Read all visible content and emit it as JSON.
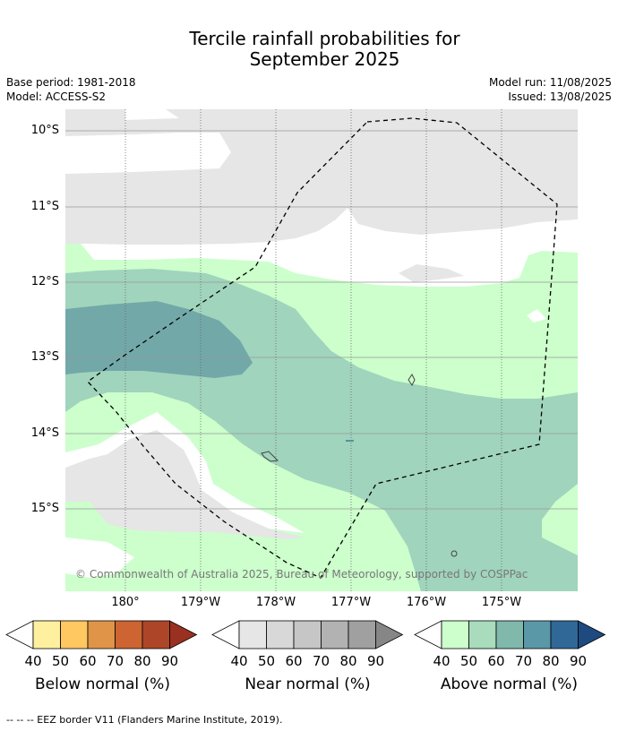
{
  "title": {
    "line1": "Tercile rainfall probabilities for",
    "line2": "September 2025"
  },
  "meta": {
    "base_period": "Base period: 1981-2018",
    "model": "Model: ACCESS-S2",
    "model_run": "Model run: 11/08/2025",
    "issued": "Issued: 13/08/2025"
  },
  "map": {
    "lat_labels": [
      "10°S",
      "11°S",
      "12°S",
      "13°S",
      "14°S",
      "15°S"
    ],
    "lon_labels": [
      "180°",
      "179°W",
      "178°W",
      "177°W",
      "176°W",
      "175°W"
    ],
    "copyright": "© Commonwealth of Australia 2025, Bureau of Meteorology, supported by COSPPac",
    "colors": {
      "near_normal_40_50": "#e6e6e6",
      "above_40_50": "#ccffcc",
      "above_50_60": "#a0d4bc",
      "above_60_70": "#72a8a8",
      "eez_border": "#000000"
    }
  },
  "colorbars": [
    {
      "title": "Below normal (%)",
      "ticks": [
        "40",
        "50",
        "60",
        "70",
        "80",
        "90"
      ],
      "colors": [
        "#fff0a0",
        "#ffc860",
        "#e09448",
        "#cd6432",
        "#ad4628",
        "#9a3020"
      ]
    },
    {
      "title": "Near normal (%)",
      "ticks": [
        "40",
        "50",
        "60",
        "70",
        "80",
        "90"
      ],
      "colors": [
        "#e6e6e6",
        "#d8d8d8",
        "#c6c6c6",
        "#b2b2b2",
        "#a0a0a0",
        "#868686"
      ]
    },
    {
      "title": "Above normal (%)",
      "ticks": [
        "40",
        "50",
        "60",
        "70",
        "80",
        "90"
      ],
      "colors": [
        "#ccffcc",
        "#a8dcbc",
        "#80b8ac",
        "#5a98a8",
        "#306898",
        "#1e4a80"
      ]
    }
  ],
  "footnote": "--  --  -- EEZ border V11 (Flanders Marine Institute, 2019)."
}
